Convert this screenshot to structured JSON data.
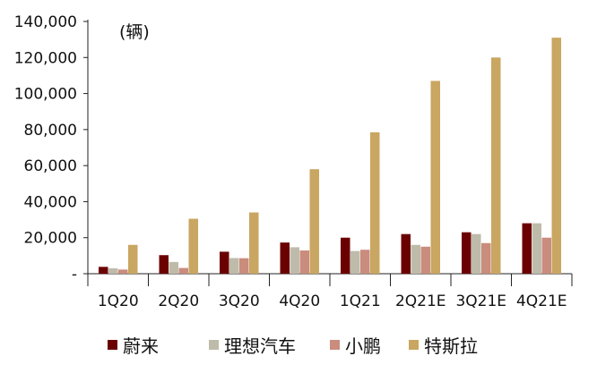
{
  "chart_data": {
    "type": "bar",
    "unit_label": "(辆)",
    "categories": [
      "1Q20",
      "2Q20",
      "3Q20",
      "4Q20",
      "1Q21",
      "2Q21E",
      "3Q21E",
      "4Q21E"
    ],
    "series": [
      {
        "name": "蔚来",
        "color": "#6b0000",
        "values": [
          3800,
          10300,
          12200,
          17300,
          20000,
          22000,
          23000,
          28000
        ]
      },
      {
        "name": "理想汽车",
        "color": "#bebbaa",
        "values": [
          3000,
          6500,
          8700,
          14700,
          12600,
          16000,
          22000,
          28000
        ]
      },
      {
        "name": "小鹏",
        "color": "#c98c7d",
        "values": [
          2300,
          3200,
          8600,
          12900,
          13300,
          15000,
          17000,
          20000
        ]
      },
      {
        "name": "特斯拉",
        "color": "#c9a661",
        "values": [
          16000,
          30500,
          34000,
          58000,
          78500,
          107000,
          120000,
          131000
        ]
      }
    ],
    "y_ticks": [
      "-",
      "20,000",
      "40,000",
      "60,000",
      "80,000",
      "100,000",
      "120,000",
      "140,000"
    ],
    "ylim": [
      0,
      140000
    ],
    "legend_position": "bottom",
    "grid": false
  }
}
